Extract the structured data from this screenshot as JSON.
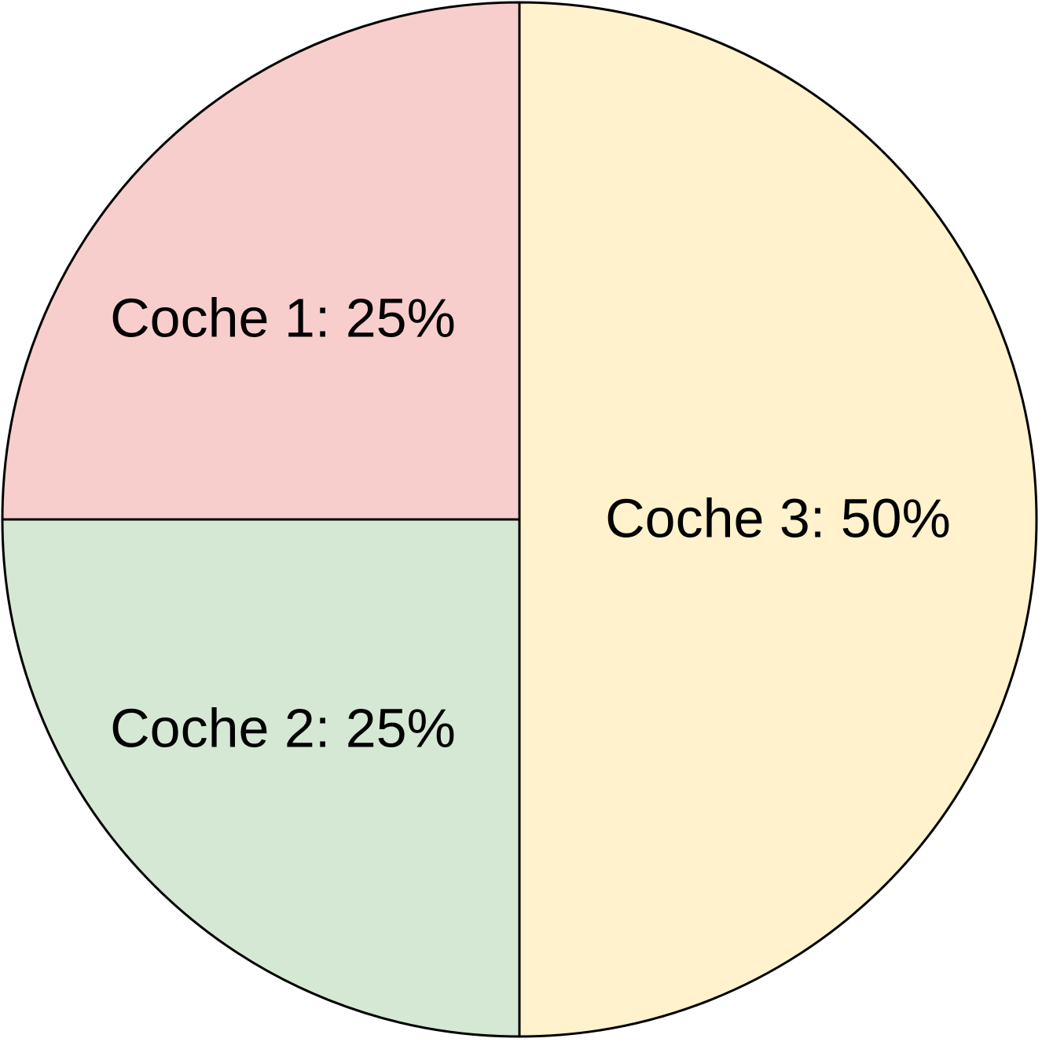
{
  "chart_data": {
    "type": "pie",
    "slices": [
      {
        "label": "Coche 1: 25%",
        "name": "Coche 1",
        "value": 25,
        "color": "#f8cecc"
      },
      {
        "label": "Coche 2: 25%",
        "name": "Coche 2",
        "value": 25,
        "color": "#d5e8d4"
      },
      {
        "label": "Coche 3: 50%",
        "name": "Coche 3",
        "value": 50,
        "color": "#fff2cc"
      }
    ],
    "stroke_color": "#000000"
  }
}
